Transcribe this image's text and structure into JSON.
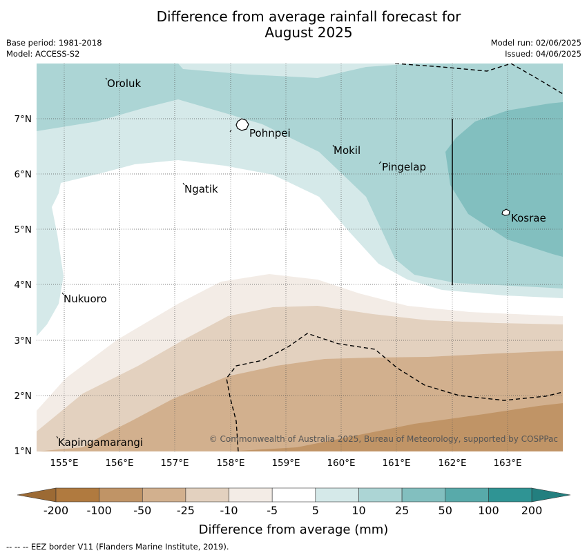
{
  "title_line1": "Difference from average rainfall forecast for",
  "title_line2": "August 2025",
  "meta_left": {
    "base_period": "Base period: 1981-2018",
    "model": "Model: ACCESS-S2"
  },
  "meta_right": {
    "model_run": "Model run: 02/06/2025",
    "issued": "Issued: 04/06/2025"
  },
  "map": {
    "lon_ticks": [
      "155°E",
      "156°E",
      "157°E",
      "158°E",
      "159°E",
      "160°E",
      "161°E",
      "162°E",
      "163°E"
    ],
    "lat_ticks": [
      "7°N",
      "6°N",
      "5°N",
      "4°N",
      "3°N",
      "2°N",
      "1°N"
    ],
    "places": [
      "Oroluk",
      "Pohnpei",
      "Mokil",
      "Pingelap",
      "Ngatik",
      "Kosrae",
      "Nukuoro",
      "Kapingamarangi"
    ],
    "copyright": "© Commonwealth of Australia 2025, Bureau of Meteorology, supported by COSPPac"
  },
  "colorbar": {
    "labels": [
      "-200",
      "-100",
      "-50",
      "-25",
      "-10",
      "-5",
      "5",
      "10",
      "25",
      "50",
      "100",
      "200"
    ],
    "title": "Difference from average (mm)",
    "colors": [
      "#b07a3f",
      "#c09466",
      "#d2b08e",
      "#e3d1bf",
      "#f3ece6",
      "#ffffff",
      "#d5e9e9",
      "#acd5d5",
      "#82bfbf",
      "#58aaaa",
      "#2f9494"
    ],
    "under_color": "#9c6a34",
    "over_color": "#237f7f"
  },
  "eez_note": "-- -- -- EEZ border V11 (Flanders Marine Institute, 2019)."
}
